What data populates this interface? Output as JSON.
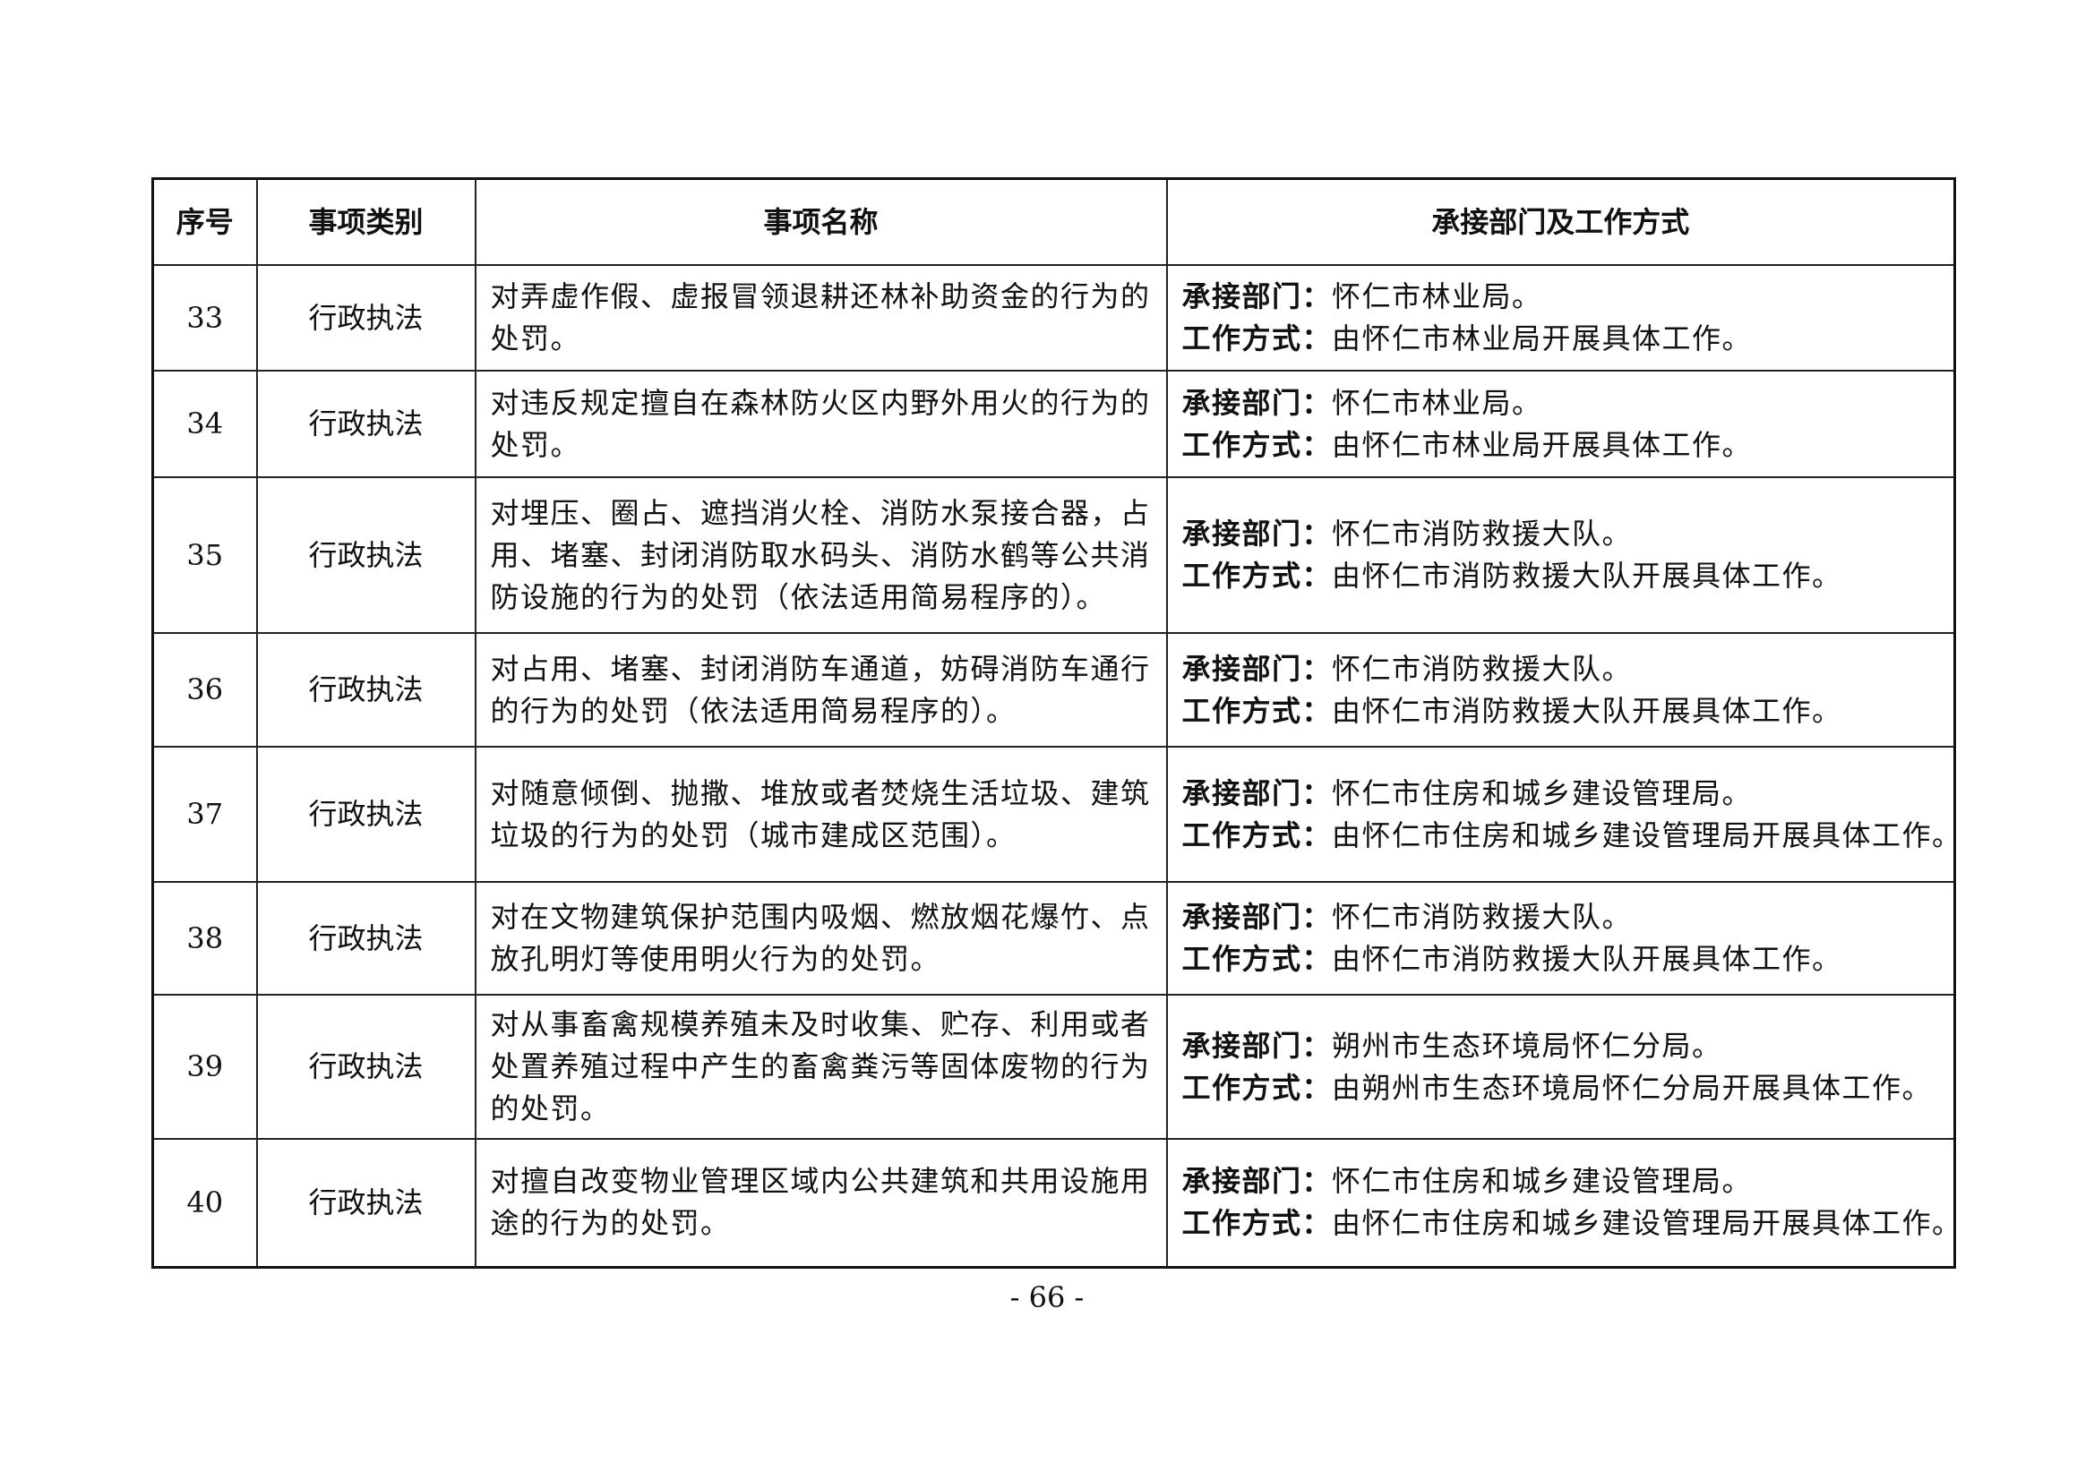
{
  "table": {
    "headers": [
      "序号",
      "事项类别",
      "事项名称",
      "承接部门及工作方式"
    ],
    "dept_label": "承接部门：",
    "method_label": "工作方式：",
    "rows": [
      {
        "no": "33",
        "category": "行政执法",
        "name": [
          "对弄虚作假、虚报冒领退耕还林补助资金的行为的",
          "处罚。"
        ],
        "dept": "怀仁市林业局。",
        "method": "由怀仁市林业局开展具体工作。"
      },
      {
        "no": "34",
        "category": "行政执法",
        "name": [
          "对违反规定擅自在森林防火区内野外用火的行为的",
          "处罚。"
        ],
        "dept": "怀仁市林业局。",
        "method": "由怀仁市林业局开展具体工作。"
      },
      {
        "no": "35",
        "category": "行政执法",
        "name": [
          "对埋压、圈占、遮挡消火栓、消防水泵接合器，占",
          "用、堵塞、封闭消防取水码头、消防水鹤等公共消",
          "防设施的行为的处罚（依法适用简易程序的）。"
        ],
        "dept": "怀仁市消防救援大队。",
        "method": "由怀仁市消防救援大队开展具体工作。"
      },
      {
        "no": "36",
        "category": "行政执法",
        "name": [
          "对占用、堵塞、封闭消防车通道，妨碍消防车通行",
          "的行为的处罚（依法适用简易程序的）。"
        ],
        "dept": "怀仁市消防救援大队。",
        "method": "由怀仁市消防救援大队开展具体工作。"
      },
      {
        "no": "37",
        "category": "行政执法",
        "name": [
          "对随意倾倒、抛撒、堆放或者焚烧生活垃圾、建筑",
          "垃圾的行为的处罚（城市建成区范围）。"
        ],
        "dept": "怀仁市住房和城乡建设管理局。",
        "method": "由怀仁市住房和城乡建设管理局开展具体工作。"
      },
      {
        "no": "38",
        "category": "行政执法",
        "name": [
          "对在文物建筑保护范围内吸烟、燃放烟花爆竹、点",
          "放孔明灯等使用明火行为的处罚。"
        ],
        "dept": "怀仁市消防救援大队。",
        "method": "由怀仁市消防救援大队开展具体工作。"
      },
      {
        "no": "39",
        "category": "行政执法",
        "name": [
          "对从事畜禽规模养殖未及时收集、贮存、利用或者",
          "处置养殖过程中产生的畜禽粪污等固体废物的行为",
          "的处罚。"
        ],
        "dept": "朔州市生态环境局怀仁分局。",
        "method": "由朔州市生态环境局怀仁分局开展具体工作。"
      },
      {
        "no": "40",
        "category": "行政执法",
        "name": [
          "对擅自改变物业管理区域内公共建筑和共用设施用",
          "途的行为的处罚。"
        ],
        "dept": "怀仁市住房和城乡建设管理局。",
        "method": "由怀仁市住房和城乡建设管理局开展具体工作。"
      }
    ]
  },
  "page_number": "- 66 -"
}
